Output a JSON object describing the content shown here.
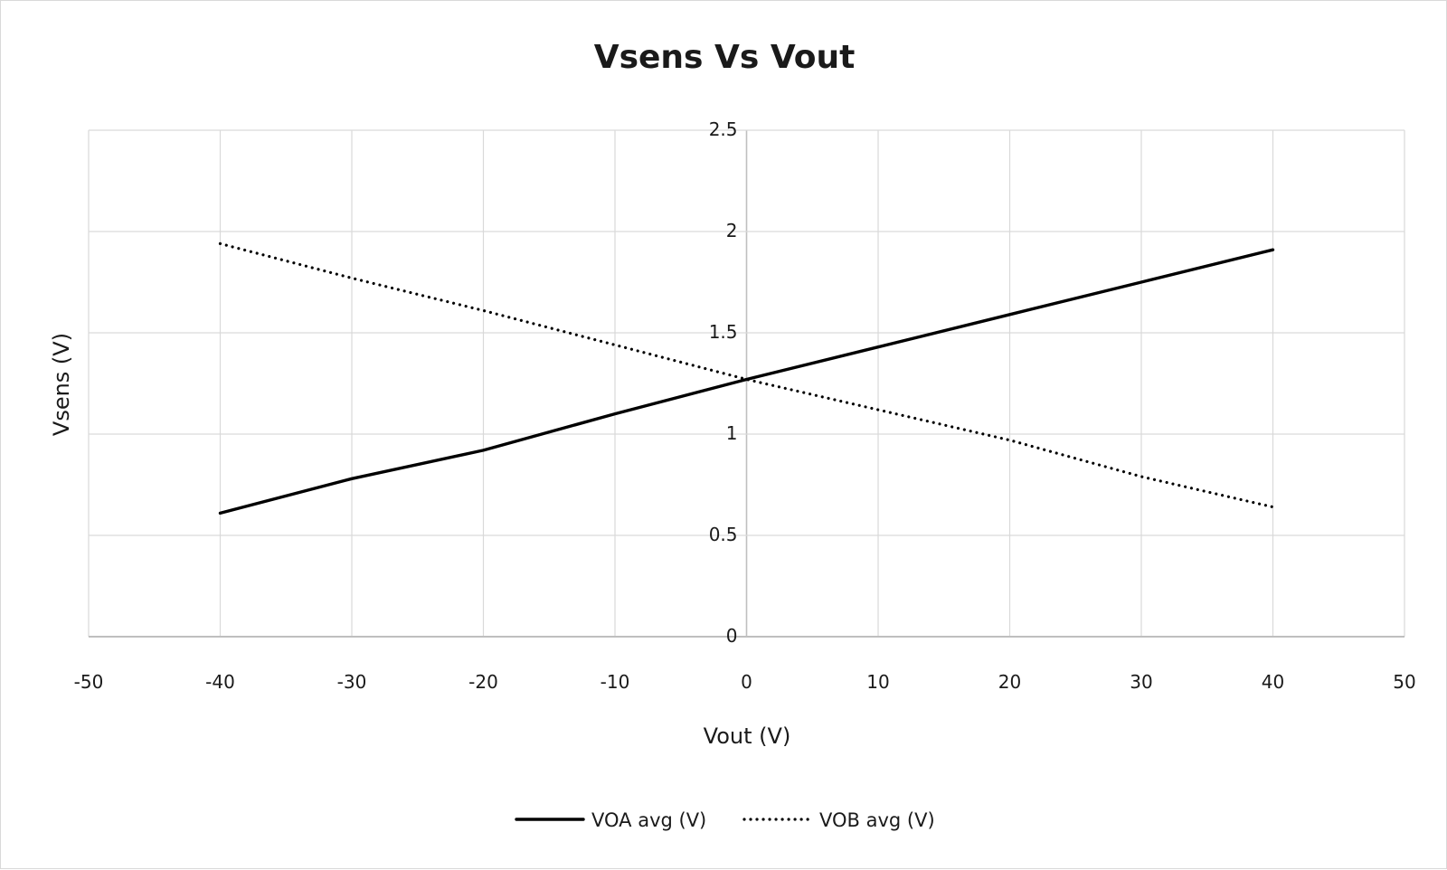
{
  "chart_data": {
    "type": "line",
    "title": "Vsens Vs Vout",
    "xlabel": "Vout (V)",
    "ylabel": "Vsens (V)",
    "xlim": [
      -50,
      50
    ],
    "ylim": [
      0,
      2.5
    ],
    "xticks": [
      -50,
      -40,
      -30,
      -20,
      -10,
      0,
      10,
      20,
      30,
      40,
      50
    ],
    "yticks": [
      0,
      0.5,
      1,
      1.5,
      2,
      2.5
    ],
    "x_tick_labels": [
      "-50",
      "-40",
      "-30",
      "-20",
      "-10",
      "0",
      "10",
      "20",
      "30",
      "40",
      "50"
    ],
    "y_tick_labels": [
      "0",
      "0.5",
      "1",
      "1.5",
      "2",
      "2.5"
    ],
    "grid": true,
    "legend_position": "bottom",
    "x": [
      -40,
      -30,
      -20,
      -10,
      0,
      10,
      20,
      30,
      40
    ],
    "series": [
      {
        "name": "VOA avg (V)",
        "style": "solid",
        "color": "#000000",
        "values": [
          0.61,
          0.78,
          0.92,
          1.1,
          1.27,
          1.43,
          1.59,
          1.75,
          1.91
        ]
      },
      {
        "name": "VOB avg  (V)",
        "style": "dotted",
        "color": "#000000",
        "values": [
          1.94,
          1.77,
          1.61,
          1.44,
          1.27,
          1.12,
          0.97,
          0.79,
          0.64
        ]
      }
    ]
  }
}
